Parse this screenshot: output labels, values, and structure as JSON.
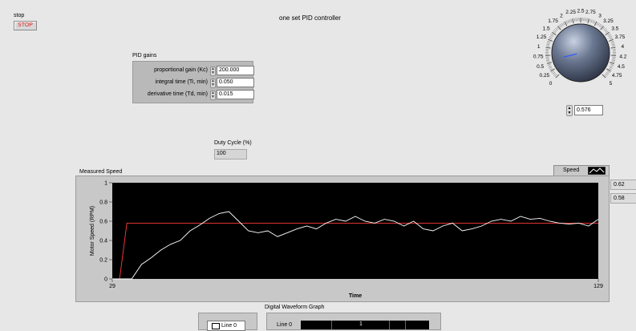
{
  "stop": {
    "label": "stop",
    "button_label": "STOP"
  },
  "window_title": "one set PID controller",
  "pid": {
    "title": "PID gains",
    "rows": [
      {
        "label": "proportional gain (Kc)",
        "value": "200.000"
      },
      {
        "label": "integral time (Ti, min)",
        "value": "0.050"
      },
      {
        "label": "derivative time (Td, min)",
        "value": "0.015"
      }
    ]
  },
  "duty_cycle": {
    "label": "Duty Cycle (%)",
    "value": "100"
  },
  "knob": {
    "ticks": [
      "0",
      "0.25",
      "0.5",
      "0.75",
      "1",
      "1.25",
      "1.5",
      "1.75",
      "2",
      "2.25",
      "2.5",
      "2.75",
      "3",
      "3.25",
      "3.5",
      "3.75",
      "4",
      "4.2",
      "4.5",
      "4.75",
      "5"
    ],
    "value": 0.576,
    "value_text": "0.576"
  },
  "graph": {
    "title": "Measured Speed",
    "legend_label": "Speed",
    "cursor_values": [
      "0.62",
      "0.58"
    ],
    "colors": {
      "plot_bg": "#000000",
      "measured": "#ffffff",
      "setpoint": "#ff3b3b"
    }
  },
  "chart_data": {
    "type": "line",
    "title": "Measured Speed",
    "xlabel": "Time",
    "ylabel": "Motor Speed (RPM)",
    "xlim": [
      29,
      129
    ],
    "ylim": [
      0,
      1
    ],
    "x_ticks": [
      "29",
      "129"
    ],
    "y_ticks": [
      "0",
      "0.2",
      "0.4",
      "0.6",
      "0.8",
      "1"
    ],
    "series": [
      {
        "name": "",
        "color": "#ff3b3b",
        "x": [
          29,
          30.5,
          32,
          129
        ],
        "y": [
          0,
          0,
          0.58,
          0.58
        ]
      },
      {
        "name": "",
        "color": "#ffffff",
        "x": [
          29,
          33,
          35,
          37,
          39,
          41,
          43,
          45,
          47,
          49,
          51,
          53,
          55,
          57,
          59,
          61,
          63,
          65,
          67,
          69,
          71,
          73,
          75,
          77,
          79,
          81,
          83,
          85,
          87,
          89,
          91,
          93,
          95,
          97,
          99,
          101,
          103,
          105,
          107,
          109,
          111,
          113,
          115,
          117,
          119,
          121,
          123,
          125,
          127,
          129
        ],
        "y": [
          0,
          0,
          0.15,
          0.22,
          0.3,
          0.36,
          0.4,
          0.5,
          0.56,
          0.63,
          0.68,
          0.7,
          0.6,
          0.5,
          0.48,
          0.5,
          0.44,
          0.48,
          0.52,
          0.55,
          0.52,
          0.58,
          0.62,
          0.6,
          0.65,
          0.6,
          0.58,
          0.62,
          0.6,
          0.55,
          0.6,
          0.52,
          0.5,
          0.55,
          0.58,
          0.5,
          0.52,
          0.55,
          0.6,
          0.62,
          0.6,
          0.65,
          0.62,
          0.63,
          0.6,
          0.58,
          0.57,
          0.58,
          0.55,
          0.62
        ]
      }
    ],
    "grid": false
  },
  "bottom": {
    "title": "Digital Waveform Graph",
    "legend_line": "Line 0",
    "row_label": "Line 0",
    "col_label": "1"
  }
}
